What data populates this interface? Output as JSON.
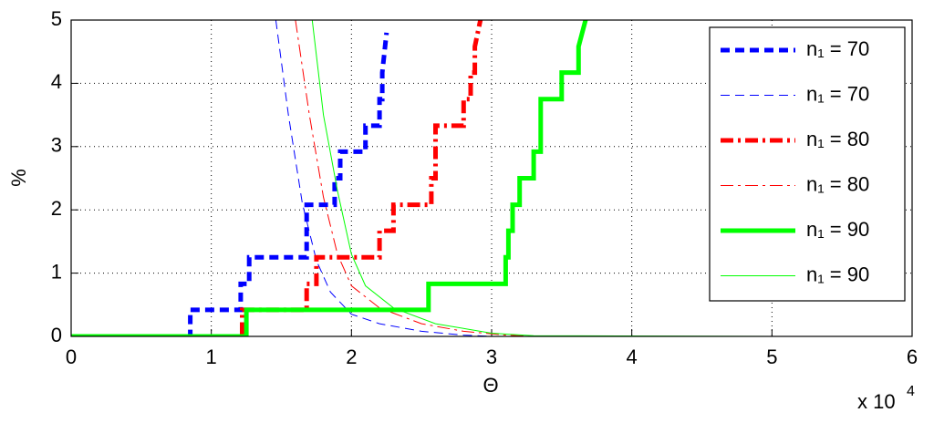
{
  "chart_data": {
    "type": "line",
    "xlabel": "Θ",
    "ylabel": "%",
    "x_scale_label": "x 10",
    "x_scale_exponent": "4",
    "xlim": [
      0,
      6
    ],
    "xticks": [
      0,
      1,
      2,
      3,
      4,
      5,
      6
    ],
    "ylim": [
      0,
      5
    ],
    "yticks": [
      0,
      1,
      2,
      3,
      4,
      5
    ],
    "grid": true,
    "legend": "upper right",
    "series": [
      {
        "name": "n₁ = 70",
        "color": "#0000ff",
        "dash": "10,6",
        "width": 5,
        "x": [
          0,
          0.85,
          0.85,
          1.21,
          1.21,
          1.27,
          1.27,
          1.68,
          1.68,
          1.88,
          1.88,
          1.92,
          1.92,
          2.1,
          2.1,
          2.2,
          2.2,
          2.22,
          2.22,
          2.25
        ],
        "values": [
          0,
          0,
          0.42,
          0.42,
          0.83,
          0.83,
          1.25,
          1.25,
          2.08,
          2.08,
          2.5,
          2.5,
          2.92,
          2.92,
          3.33,
          3.33,
          3.75,
          3.75,
          4.17,
          4.8
        ]
      },
      {
        "name": "n₁ = 70",
        "color": "#0000ff",
        "dash": "10,6",
        "width": 1,
        "x": [
          1.46,
          1.55,
          1.65,
          1.75,
          1.85,
          2.0,
          2.2,
          2.5,
          2.8,
          3.0
        ],
        "values": [
          5,
          3.5,
          2.1,
          1.2,
          0.7,
          0.35,
          0.2,
          0.08,
          0.02,
          0
        ]
      },
      {
        "name": "n₁ = 80",
        "color": "#ff0000",
        "dash": "14,5,3,5",
        "width": 5,
        "x": [
          0,
          1.22,
          1.22,
          1.68,
          1.68,
          1.75,
          1.75,
          2.2,
          2.2,
          2.3,
          2.3,
          2.57,
          2.57,
          2.6,
          2.6,
          2.8,
          2.8,
          2.85,
          2.85,
          2.88,
          2.88,
          2.92
        ],
        "values": [
          0,
          0,
          0.42,
          0.42,
          0.83,
          0.83,
          1.25,
          1.25,
          1.67,
          1.67,
          2.08,
          2.08,
          2.5,
          2.5,
          3.33,
          3.33,
          3.75,
          3.75,
          4.17,
          4.17,
          4.58,
          5
        ]
      },
      {
        "name": "n₁ = 80",
        "color": "#ff0000",
        "dash": "14,5,3,5",
        "width": 1,
        "x": [
          1.6,
          1.7,
          1.8,
          1.9,
          2.0,
          2.2,
          2.5,
          2.8,
          3.1,
          3.3
        ],
        "values": [
          5,
          3.5,
          2.2,
          1.3,
          0.8,
          0.45,
          0.2,
          0.08,
          0.02,
          0
        ]
      },
      {
        "name": "n₁ = 90",
        "color": "#00ff00",
        "dash": "none",
        "width": 5,
        "x": [
          0,
          1.25,
          1.25,
          2.55,
          2.55,
          3.1,
          3.1,
          3.12,
          3.12,
          3.15,
          3.15,
          3.2,
          3.2,
          3.3,
          3.3,
          3.35,
          3.35,
          3.5,
          3.5,
          3.62,
          3.62,
          3.67
        ],
        "values": [
          0,
          0,
          0.42,
          0.42,
          0.83,
          0.83,
          1.25,
          1.25,
          1.67,
          1.67,
          2.08,
          2.08,
          2.5,
          2.5,
          2.92,
          2.92,
          3.75,
          3.75,
          4.17,
          4.17,
          4.58,
          5
        ]
      },
      {
        "name": "n₁ = 90",
        "color": "#00ff00",
        "dash": "none",
        "width": 1,
        "x": [
          1.72,
          1.8,
          1.9,
          2.0,
          2.1,
          2.3,
          2.6,
          3.0,
          3.3,
          5
        ],
        "values": [
          5,
          3.5,
          2.3,
          1.3,
          0.8,
          0.45,
          0.2,
          0.05,
          0.01,
          0
        ]
      }
    ]
  }
}
